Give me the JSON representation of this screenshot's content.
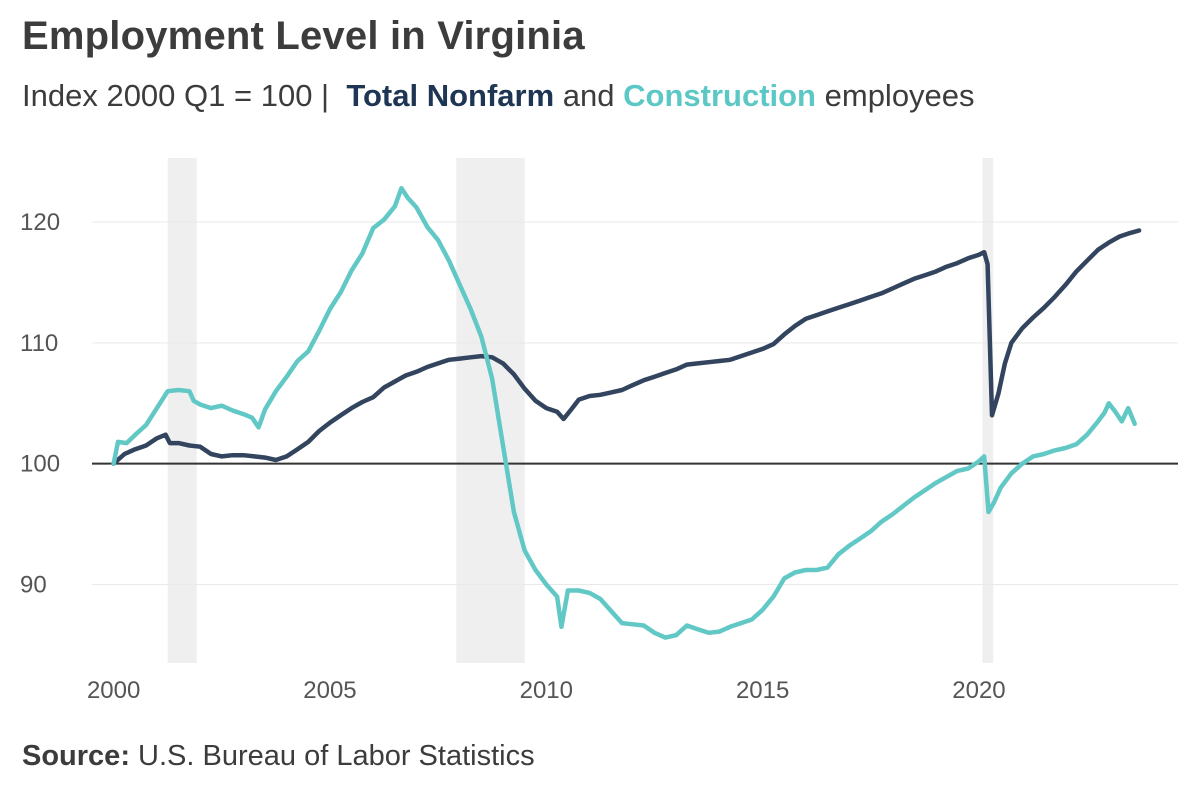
{
  "chart_data": {
    "type": "line",
    "title": "Employment Level in Virginia",
    "subtitle": {
      "prefix": "Index 2000 Q1 = 100 |",
      "series1": "Total Nonfarm",
      "joiner": "and",
      "series2": "Construction",
      "suffix": "employees"
    },
    "xlim": [
      1999.5,
      2024.6
    ],
    "ylim": [
      83.5,
      125.3
    ],
    "x_ticks": [
      2000,
      2005,
      2010,
      2015,
      2020
    ],
    "y_ticks": [
      90,
      100,
      110,
      120
    ],
    "baseline": 100,
    "recessions": [
      [
        2001.25,
        2001.92
      ],
      [
        2007.92,
        2009.5
      ],
      [
        2020.08,
        2020.33
      ]
    ],
    "series": [
      {
        "name": "Total Nonfarm",
        "color": "#33445e",
        "points": [
          [
            2000.0,
            100.0
          ],
          [
            2000.25,
            100.8
          ],
          [
            2000.5,
            101.2
          ],
          [
            2000.75,
            101.5
          ],
          [
            2001.0,
            102.1
          ],
          [
            2001.2,
            102.4
          ],
          [
            2001.3,
            101.7
          ],
          [
            2001.5,
            101.7
          ],
          [
            2001.75,
            101.5
          ],
          [
            2002.0,
            101.4
          ],
          [
            2002.25,
            100.8
          ],
          [
            2002.5,
            100.6
          ],
          [
            2002.75,
            100.7
          ],
          [
            2003.0,
            100.7
          ],
          [
            2003.25,
            100.6
          ],
          [
            2003.5,
            100.5
          ],
          [
            2003.75,
            100.3
          ],
          [
            2004.0,
            100.6
          ],
          [
            2004.25,
            101.2
          ],
          [
            2004.5,
            101.8
          ],
          [
            2004.75,
            102.7
          ],
          [
            2005.0,
            103.4
          ],
          [
            2005.25,
            104.0
          ],
          [
            2005.5,
            104.6
          ],
          [
            2005.75,
            105.1
          ],
          [
            2006.0,
            105.5
          ],
          [
            2006.25,
            106.3
          ],
          [
            2006.5,
            106.8
          ],
          [
            2006.75,
            107.3
          ],
          [
            2007.0,
            107.6
          ],
          [
            2007.25,
            108.0
          ],
          [
            2007.5,
            108.3
          ],
          [
            2007.75,
            108.6
          ],
          [
            2008.0,
            108.7
          ],
          [
            2008.25,
            108.8
          ],
          [
            2008.5,
            108.9
          ],
          [
            2008.75,
            108.8
          ],
          [
            2009.0,
            108.3
          ],
          [
            2009.25,
            107.4
          ],
          [
            2009.5,
            106.2
          ],
          [
            2009.75,
            105.2
          ],
          [
            2010.0,
            104.6
          ],
          [
            2010.25,
            104.3
          ],
          [
            2010.4,
            103.7
          ],
          [
            2010.6,
            104.6
          ],
          [
            2010.75,
            105.3
          ],
          [
            2011.0,
            105.6
          ],
          [
            2011.25,
            105.7
          ],
          [
            2011.5,
            105.9
          ],
          [
            2011.75,
            106.1
          ],
          [
            2012.0,
            106.5
          ],
          [
            2012.25,
            106.9
          ],
          [
            2012.5,
            107.2
          ],
          [
            2012.75,
            107.5
          ],
          [
            2013.0,
            107.8
          ],
          [
            2013.25,
            108.2
          ],
          [
            2013.5,
            108.3
          ],
          [
            2013.75,
            108.4
          ],
          [
            2014.0,
            108.5
          ],
          [
            2014.25,
            108.6
          ],
          [
            2014.5,
            108.9
          ],
          [
            2014.75,
            109.2
          ],
          [
            2015.0,
            109.5
          ],
          [
            2015.25,
            109.9
          ],
          [
            2015.5,
            110.7
          ],
          [
            2015.75,
            111.4
          ],
          [
            2016.0,
            112.0
          ],
          [
            2016.25,
            112.3
          ],
          [
            2016.5,
            112.6
          ],
          [
            2016.75,
            112.9
          ],
          [
            2017.0,
            113.2
          ],
          [
            2017.25,
            113.5
          ],
          [
            2017.5,
            113.8
          ],
          [
            2017.75,
            114.1
          ],
          [
            2018.0,
            114.5
          ],
          [
            2018.25,
            114.9
          ],
          [
            2018.5,
            115.3
          ],
          [
            2018.75,
            115.6
          ],
          [
            2019.0,
            115.9
          ],
          [
            2019.25,
            116.3
          ],
          [
            2019.5,
            116.6
          ],
          [
            2019.75,
            117.0
          ],
          [
            2020.0,
            117.3
          ],
          [
            2020.12,
            117.5
          ],
          [
            2020.2,
            116.5
          ],
          [
            2020.3,
            104.0
          ],
          [
            2020.45,
            105.8
          ],
          [
            2020.6,
            108.3
          ],
          [
            2020.75,
            110.0
          ],
          [
            2021.0,
            111.2
          ],
          [
            2021.25,
            112.1
          ],
          [
            2021.5,
            112.9
          ],
          [
            2021.75,
            113.8
          ],
          [
            2022.0,
            114.8
          ],
          [
            2022.25,
            115.9
          ],
          [
            2022.5,
            116.8
          ],
          [
            2022.75,
            117.7
          ],
          [
            2023.0,
            118.3
          ],
          [
            2023.25,
            118.8
          ],
          [
            2023.5,
            119.1
          ],
          [
            2023.7,
            119.3
          ]
        ]
      },
      {
        "name": "Construction",
        "color": "#62c8c6",
        "points": [
          [
            2000.0,
            100.0
          ],
          [
            2000.1,
            101.8
          ],
          [
            2000.3,
            101.7
          ],
          [
            2000.5,
            102.4
          ],
          [
            2000.75,
            103.2
          ],
          [
            2001.0,
            104.6
          ],
          [
            2001.25,
            106.0
          ],
          [
            2001.5,
            106.1
          ],
          [
            2001.75,
            106.0
          ],
          [
            2001.85,
            105.2
          ],
          [
            2002.0,
            104.9
          ],
          [
            2002.25,
            104.6
          ],
          [
            2002.5,
            104.8
          ],
          [
            2002.75,
            104.4
          ],
          [
            2003.0,
            104.1
          ],
          [
            2003.2,
            103.8
          ],
          [
            2003.35,
            103.0
          ],
          [
            2003.5,
            104.5
          ],
          [
            2003.75,
            106.0
          ],
          [
            2004.0,
            107.2
          ],
          [
            2004.25,
            108.5
          ],
          [
            2004.5,
            109.3
          ],
          [
            2004.75,
            111.0
          ],
          [
            2005.0,
            112.8
          ],
          [
            2005.25,
            114.2
          ],
          [
            2005.5,
            116.0
          ],
          [
            2005.75,
            117.4
          ],
          [
            2006.0,
            119.5
          ],
          [
            2006.25,
            120.2
          ],
          [
            2006.5,
            121.3
          ],
          [
            2006.65,
            122.8
          ],
          [
            2006.8,
            122.0
          ],
          [
            2007.0,
            121.2
          ],
          [
            2007.25,
            119.6
          ],
          [
            2007.5,
            118.5
          ],
          [
            2007.75,
            116.8
          ],
          [
            2008.0,
            114.8
          ],
          [
            2008.25,
            112.8
          ],
          [
            2008.5,
            110.5
          ],
          [
            2008.75,
            107.0
          ],
          [
            2009.0,
            101.5
          ],
          [
            2009.25,
            96.0
          ],
          [
            2009.5,
            92.8
          ],
          [
            2009.75,
            91.2
          ],
          [
            2010.0,
            90.0
          ],
          [
            2010.25,
            89.0
          ],
          [
            2010.35,
            86.5
          ],
          [
            2010.5,
            89.5
          ],
          [
            2010.75,
            89.5
          ],
          [
            2011.0,
            89.3
          ],
          [
            2011.25,
            88.8
          ],
          [
            2011.5,
            87.8
          ],
          [
            2011.75,
            86.8
          ],
          [
            2012.0,
            86.7
          ],
          [
            2012.25,
            86.6
          ],
          [
            2012.5,
            86.0
          ],
          [
            2012.75,
            85.6
          ],
          [
            2013.0,
            85.8
          ],
          [
            2013.25,
            86.6
          ],
          [
            2013.5,
            86.3
          ],
          [
            2013.75,
            86.0
          ],
          [
            2014.0,
            86.1
          ],
          [
            2014.25,
            86.5
          ],
          [
            2014.5,
            86.8
          ],
          [
            2014.75,
            87.1
          ],
          [
            2015.0,
            87.9
          ],
          [
            2015.25,
            89.0
          ],
          [
            2015.5,
            90.5
          ],
          [
            2015.75,
            91.0
          ],
          [
            2016.0,
            91.2
          ],
          [
            2016.25,
            91.2
          ],
          [
            2016.5,
            91.4
          ],
          [
            2016.75,
            92.5
          ],
          [
            2017.0,
            93.2
          ],
          [
            2017.25,
            93.8
          ],
          [
            2017.5,
            94.4
          ],
          [
            2017.75,
            95.2
          ],
          [
            2018.0,
            95.8
          ],
          [
            2018.25,
            96.5
          ],
          [
            2018.5,
            97.2
          ],
          [
            2018.75,
            97.8
          ],
          [
            2019.0,
            98.4
          ],
          [
            2019.25,
            98.9
          ],
          [
            2019.5,
            99.4
          ],
          [
            2019.75,
            99.6
          ],
          [
            2020.0,
            100.2
          ],
          [
            2020.12,
            100.6
          ],
          [
            2020.22,
            96.0
          ],
          [
            2020.35,
            96.8
          ],
          [
            2020.5,
            98.0
          ],
          [
            2020.75,
            99.2
          ],
          [
            2021.0,
            100.0
          ],
          [
            2021.25,
            100.6
          ],
          [
            2021.5,
            100.8
          ],
          [
            2021.75,
            101.1
          ],
          [
            2022.0,
            101.3
          ],
          [
            2022.25,
            101.6
          ],
          [
            2022.5,
            102.4
          ],
          [
            2022.75,
            103.5
          ],
          [
            2022.9,
            104.2
          ],
          [
            2023.0,
            105.0
          ],
          [
            2023.15,
            104.3
          ],
          [
            2023.3,
            103.5
          ],
          [
            2023.45,
            104.6
          ],
          [
            2023.6,
            103.3
          ]
        ]
      }
    ]
  },
  "footer": {
    "source_label": "Source:",
    "source_text": "U.S. Bureau of Labor Statistics"
  },
  "colors": {
    "total_nonfarm": "#1e3553",
    "construction": "#5cc8c6",
    "recession_band": "#efefef",
    "baseline": "#333333",
    "grid": "#e9e9e9"
  }
}
